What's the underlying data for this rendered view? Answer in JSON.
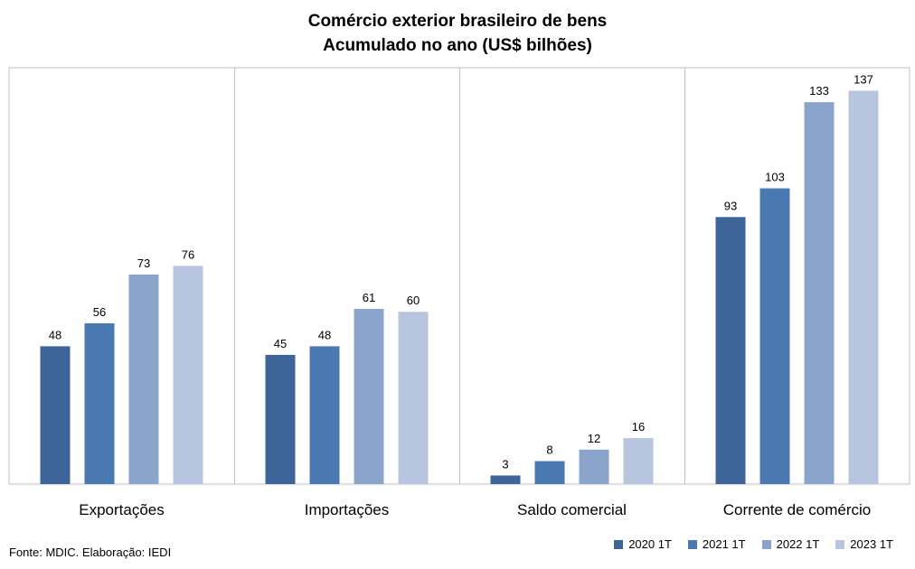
{
  "chart_data": {
    "type": "bar",
    "title": "Comércio exterior brasileiro de bens",
    "subtitle": "Acumulado no ano (US$ bilhões)",
    "categories": [
      "Exportações",
      "Importações",
      "Saldo comercial",
      "Corrente de comércio"
    ],
    "series": [
      {
        "name": "2020 1T",
        "color": "#3d6599",
        "values": [
          48,
          45,
          3,
          93
        ]
      },
      {
        "name": "2021 1T",
        "color": "#4a78b0",
        "values": [
          56,
          48,
          8,
          103
        ]
      },
      {
        "name": "2022 1T",
        "color": "#8ba4cb",
        "values": [
          73,
          61,
          12,
          133
        ]
      },
      {
        "name": "2023 1T",
        "color": "#b8c5de",
        "values": [
          76,
          60,
          16,
          137
        ]
      }
    ],
    "ylim": [
      0,
      145
    ],
    "grid": false,
    "data_labels": true,
    "legend_position": "bottom-right"
  },
  "source": "Fonte: MDIC. Elaboração: IEDI"
}
